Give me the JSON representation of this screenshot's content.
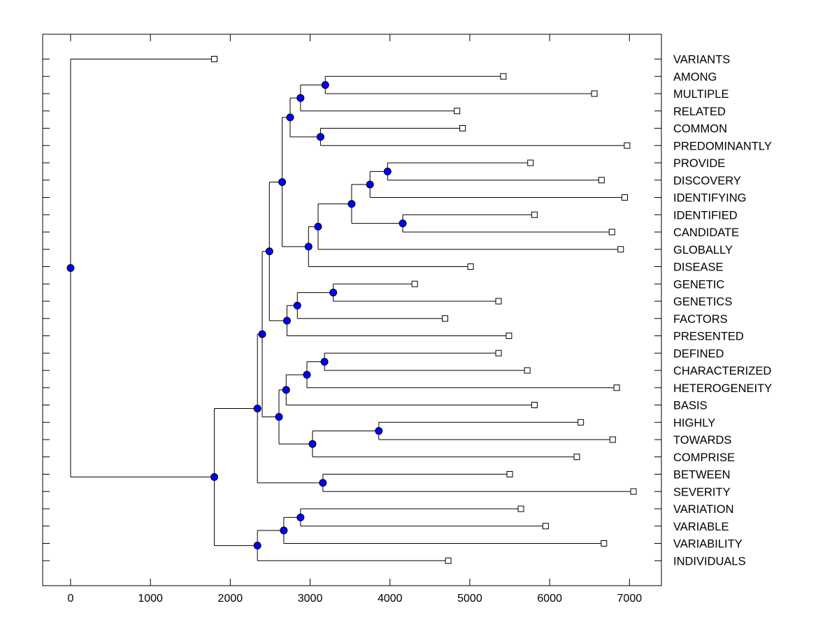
{
  "chart_data": {
    "type": "dendrogram",
    "title": "",
    "xlabel": "",
    "ylabel": "",
    "xlim": [
      -350,
      7400
    ],
    "x_ticks": [
      0,
      1000,
      2000,
      3000,
      4000,
      5000,
      6000,
      7000
    ],
    "x_tick_labels": [
      "0",
      "1000",
      "2000",
      "3000",
      "4000",
      "5000",
      "6000",
      "7000"
    ],
    "colors": {
      "node": "#0000ff",
      "line": "#000000",
      "leaf_marker": "#ffffff"
    },
    "leaves": [
      {
        "label": "VARIANTS",
        "value": 1800
      },
      {
        "label": "AMONG",
        "value": 5420
      },
      {
        "label": "MULTIPLE",
        "value": 6560
      },
      {
        "label": "RELATED",
        "value": 4840
      },
      {
        "label": "COMMON",
        "value": 4910
      },
      {
        "label": "PREDOMINANTLY",
        "value": 6970
      },
      {
        "label": "PROVIDE",
        "value": 5760
      },
      {
        "label": "DISCOVERY",
        "value": 6650
      },
      {
        "label": "IDENTIFYING",
        "value": 6940
      },
      {
        "label": "IDENTIFIED",
        "value": 5810
      },
      {
        "label": "CANDIDATE",
        "value": 6780
      },
      {
        "label": "GLOBALLY",
        "value": 6890
      },
      {
        "label": "DISEASE",
        "value": 5010
      },
      {
        "label": "GENETIC",
        "value": 4310
      },
      {
        "label": "GENETICS",
        "value": 5360
      },
      {
        "label": "FACTORS",
        "value": 4690
      },
      {
        "label": "PRESENTED",
        "value": 5490
      },
      {
        "label": "DEFINED",
        "value": 5360
      },
      {
        "label": "CHARACTERIZED",
        "value": 5720
      },
      {
        "label": "HETEROGENEITY",
        "value": 6840
      },
      {
        "label": "BASIS",
        "value": 5810
      },
      {
        "label": "HIGHLY",
        "value": 6390
      },
      {
        "label": "TOWARDS",
        "value": 6790
      },
      {
        "label": "COMPRISE",
        "value": 6340
      },
      {
        "label": "BETWEEN",
        "value": 5500
      },
      {
        "label": "SEVERITY",
        "value": 7050
      },
      {
        "label": "VARIATION",
        "value": 5640
      },
      {
        "label": "VARIABLE",
        "value": 5950
      },
      {
        "label": "VARIABILITY",
        "value": 6680
      },
      {
        "label": "INDIVIDUALS",
        "value": 4730
      }
    ],
    "nodes": [
      {
        "value": 3190,
        "children": [
          "L1",
          "L2"
        ]
      },
      {
        "value": 2880,
        "children": [
          "N0",
          "L3"
        ]
      },
      {
        "value": 3130,
        "children": [
          "L4",
          "L5"
        ]
      },
      {
        "value": 2750,
        "children": [
          "N1",
          "N2"
        ]
      },
      {
        "value": 3970,
        "children": [
          "L6",
          "L7"
        ]
      },
      {
        "value": 3750,
        "children": [
          "N4",
          "L8"
        ]
      },
      {
        "value": 4160,
        "children": [
          "L9",
          "L10"
        ]
      },
      {
        "value": 3520,
        "children": [
          "N5",
          "N6"
        ]
      },
      {
        "value": 3100,
        "children": [
          "N7",
          "L11"
        ]
      },
      {
        "value": 2980,
        "children": [
          "N8",
          "L12"
        ]
      },
      {
        "value": 2650,
        "children": [
          "N3",
          "N9"
        ]
      },
      {
        "value": 3290,
        "children": [
          "L13",
          "L14"
        ]
      },
      {
        "value": 2840,
        "children": [
          "N11",
          "L15"
        ]
      },
      {
        "value": 2710,
        "children": [
          "N12",
          "L16"
        ]
      },
      {
        "value": 2490,
        "children": [
          "N10",
          "N13"
        ]
      },
      {
        "value": 3180,
        "children": [
          "L17",
          "L18"
        ]
      },
      {
        "value": 2960,
        "children": [
          "N15",
          "L19"
        ]
      },
      {
        "value": 2700,
        "children": [
          "N16",
          "L20"
        ]
      },
      {
        "value": 3860,
        "children": [
          "L21",
          "L22"
        ]
      },
      {
        "value": 3030,
        "children": [
          "N18",
          "L23"
        ]
      },
      {
        "value": 2610,
        "children": [
          "N17",
          "N19"
        ]
      },
      {
        "value": 2400,
        "children": [
          "N14",
          "N20"
        ]
      },
      {
        "value": 3160,
        "children": [
          "L24",
          "L25"
        ]
      },
      {
        "value": 2340,
        "children": [
          "N21",
          "N22"
        ]
      },
      {
        "value": 2880,
        "children": [
          "L26",
          "L27"
        ]
      },
      {
        "value": 2670,
        "children": [
          "N24",
          "L28"
        ]
      },
      {
        "value": 2340,
        "children": [
          "N25",
          "L29"
        ]
      },
      {
        "value": 1800,
        "children": [
          "N23",
          "N26"
        ]
      },
      {
        "value": 0,
        "children": [
          "L0",
          "N27"
        ]
      }
    ]
  }
}
